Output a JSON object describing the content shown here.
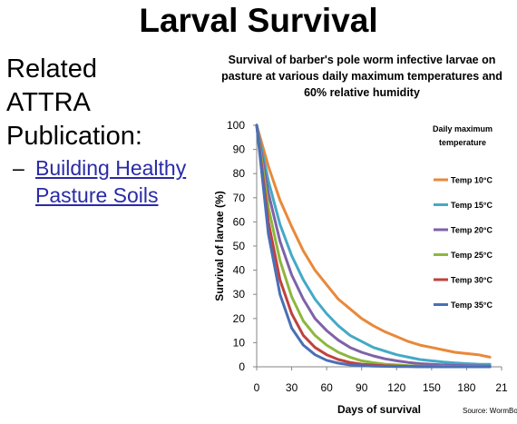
{
  "slide": {
    "title": "Larval Survival",
    "related_lines": [
      "Related",
      "ATTRA",
      "Publication:"
    ],
    "list_dash": "–",
    "link_text": "Building Healthy Pasture Soils",
    "source": "Source: WormBo"
  },
  "chart_data": {
    "type": "line",
    "title": "Survival of barber's pole worm infective larvae on pasture at various daily maximum temperatures and 60% relative humidity",
    "xlabel": "Days of survival",
    "ylabel": "Survival of larvae (%)",
    "xlim": [
      0,
      210
    ],
    "ylim": [
      0,
      100
    ],
    "x_ticks": [
      "0",
      "30",
      "60",
      "90",
      "120",
      "150",
      "180",
      "21"
    ],
    "y_ticks": [
      0,
      10,
      20,
      30,
      40,
      50,
      60,
      70,
      80,
      90,
      100
    ],
    "legend_title": "Daily maximum temperature",
    "legend_position": "right",
    "grid": false,
    "x": [
      0,
      10,
      20,
      30,
      40,
      50,
      60,
      70,
      80,
      90,
      100,
      110,
      120,
      130,
      140,
      150,
      160,
      170,
      180,
      190,
      200
    ],
    "series": [
      {
        "name": "Temp 10°C",
        "color": "#E8893A",
        "values": [
          100,
          83,
          69,
          58,
          48,
          40,
          34,
          28,
          24,
          20,
          17,
          14.5,
          12.5,
          10.5,
          9,
          8,
          7,
          6,
          5.5,
          5,
          4
        ]
      },
      {
        "name": "Temp 15°C",
        "color": "#44A9C6",
        "values": [
          100,
          77,
          59,
          46,
          36,
          28,
          22,
          17,
          13,
          10.5,
          8,
          6.5,
          5,
          4,
          3,
          2.5,
          2,
          1.6,
          1.3,
          1.1,
          1
        ]
      },
      {
        "name": "Temp 20°C",
        "color": "#7E62A8",
        "values": [
          100,
          72,
          52,
          38,
          28,
          20,
          15,
          11,
          8,
          6,
          4.5,
          3.3,
          2.5,
          1.8,
          1.3,
          1,
          0.8,
          0.6,
          0.5,
          0.4,
          0.3
        ]
      },
      {
        "name": "Temp 25°C",
        "color": "#8DB73E",
        "values": [
          100,
          66,
          44,
          29,
          19,
          13,
          9,
          6,
          4,
          2.5,
          1.7,
          1.1,
          0.8,
          0.5,
          0.3,
          0.2,
          0.2,
          0.1,
          0.1,
          0.1,
          0
        ]
      },
      {
        "name": "Temp 30°C",
        "color": "#C0413E",
        "values": [
          100,
          60,
          36,
          22,
          13,
          8,
          5,
          3,
          1.8,
          1.1,
          0.7,
          0.4,
          0.3,
          0.2,
          0.1,
          0.1,
          0,
          0,
          0,
          0,
          0
        ]
      },
      {
        "name": "Temp 35°C",
        "color": "#4A6FB6",
        "values": [
          100,
          55,
          30,
          16,
          9,
          5,
          2.7,
          1.5,
          0.8,
          0.5,
          0.3,
          0.2,
          0.1,
          0.1,
          0,
          0,
          0,
          0,
          0,
          0,
          0
        ]
      }
    ]
  }
}
